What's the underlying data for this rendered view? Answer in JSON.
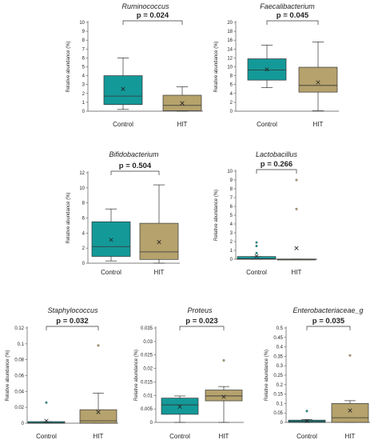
{
  "chart_data": [
    {
      "type": "box",
      "title": "Ruminococcus",
      "annotation": "p = 0.024",
      "ylabel": "Relative abundance (%)",
      "ylim": [
        0,
        10
      ],
      "yticks": [
        0,
        1,
        2,
        3,
        4,
        5,
        6,
        7,
        8,
        9,
        10
      ],
      "categories": [
        "Control",
        "HIT"
      ],
      "series": [
        {
          "box": {
            "min": 0.2,
            "q1": 0.75,
            "median": 1.7,
            "q3": 4.0,
            "max": 6.0,
            "mean": 2.5,
            "outliers": []
          }
        },
        {
          "box": {
            "min": 0.0,
            "q1": 0.05,
            "median": 0.65,
            "q3": 1.8,
            "max": 2.75,
            "mean": 0.9,
            "outliers": []
          }
        }
      ],
      "colors": [
        "#149999",
        "#b5a26c"
      ]
    },
    {
      "type": "box",
      "title": "Faecalibacterium",
      "annotation": "p = 0.045",
      "ylabel": "Relative abundance (%)",
      "ylim": [
        0,
        20
      ],
      "yticks": [
        0,
        2,
        4,
        6,
        8,
        10,
        12,
        14,
        16,
        18,
        20
      ],
      "categories": [
        "Control",
        "HIT"
      ],
      "series": [
        {
          "box": {
            "min": 5.3,
            "q1": 7.0,
            "median": 9.3,
            "q3": 11.8,
            "max": 14.9,
            "mean": 9.4,
            "outliers": []
          }
        },
        {
          "box": {
            "min": 0.1,
            "q1": 4.3,
            "median": 5.8,
            "q3": 9.9,
            "max": 15.6,
            "mean": 6.5,
            "outliers": []
          }
        }
      ],
      "colors": [
        "#149999",
        "#b5a26c"
      ]
    },
    {
      "type": "box",
      "title": "Bifidobacterium",
      "annotation": "p = 0.504",
      "ylabel": "Relative abundance (%)",
      "ylim": [
        0,
        12
      ],
      "yticks": [
        0,
        2,
        4,
        6,
        8,
        10,
        12
      ],
      "categories": [
        "Control",
        "HIT"
      ],
      "series": [
        {
          "box": {
            "min": 0.3,
            "q1": 0.9,
            "median": 2.2,
            "q3": 5.5,
            "max": 7.2,
            "mean": 3.1,
            "outliers": []
          }
        },
        {
          "box": {
            "min": 0.0,
            "q1": 0.5,
            "median": 1.5,
            "q3": 5.3,
            "max": 10.4,
            "mean": 2.8,
            "outliers": []
          }
        }
      ],
      "colors": [
        "#149999",
        "#b5a26c"
      ]
    },
    {
      "type": "box",
      "title": "Lactobacillus",
      "annotation": "p = 0.266",
      "ylabel": "Relative abundance (%)",
      "ylim": [
        0,
        10
      ],
      "yticks": [
        0,
        1,
        2,
        3,
        4,
        5,
        6,
        7,
        8,
        9,
        10
      ],
      "categories": [
        "Control",
        "HIT"
      ],
      "series": [
        {
          "box": {
            "min": 0.0,
            "q1": 0.0,
            "median": 0.05,
            "q3": 0.3,
            "max": 0.3,
            "mean": 0.35,
            "outliers": [
              0.7,
              1.5,
              1.9
            ]
          }
        },
        {
          "box": {
            "min": 0.0,
            "q1": 0.0,
            "median": 0.0,
            "q3": 0.02,
            "max": 0.02,
            "mean": 1.25,
            "outliers": [
              5.7,
              9.0
            ]
          }
        }
      ],
      "colors": [
        "#149999",
        "#b5a26c"
      ]
    },
    {
      "type": "box",
      "title": "Staphylococcus",
      "annotation": "p = 0.032",
      "ylabel": "Relative abundance (%)",
      "ylim": [
        0,
        0.12
      ],
      "yticks": [
        0,
        0.02,
        0.04,
        0.06,
        0.08,
        0.1,
        0.12
      ],
      "categories": [
        "Control",
        "HIT"
      ],
      "series": [
        {
          "box": {
            "min": 0.0,
            "q1": 0.0,
            "median": 0.0005,
            "q3": 0.002,
            "max": 0.002,
            "mean": 0.003,
            "outliers": [
              0.026
            ]
          }
        },
        {
          "box": {
            "min": 0.0,
            "q1": 0.0,
            "median": 0.003,
            "q3": 0.017,
            "max": 0.038,
            "mean": 0.014,
            "outliers": [
              0.098
            ]
          }
        }
      ],
      "colors": [
        "#149999",
        "#b5a26c"
      ]
    },
    {
      "type": "box",
      "title": "Proteus",
      "annotation": "p = 0.023",
      "ylabel": "Relative abundance (%)",
      "ylim": [
        0,
        0.035
      ],
      "yticks": [
        0,
        0.005,
        0.01,
        0.015,
        0.02,
        0.025,
        0.03,
        0.035
      ],
      "categories": [
        "Control",
        "HIT"
      ],
      "series": [
        {
          "box": {
            "min": 0.0,
            "q1": 0.003,
            "median": 0.0065,
            "q3": 0.009,
            "max": 0.0098,
            "mean": 0.0058,
            "outliers": []
          }
        },
        {
          "box": {
            "min": 0.0,
            "q1": 0.008,
            "median": 0.0098,
            "q3": 0.012,
            "max": 0.0133,
            "mean": 0.0095,
            "outliers": [
              0.023
            ]
          }
        }
      ],
      "colors": [
        "#149999",
        "#b5a26c"
      ]
    },
    {
      "type": "box",
      "title": "Enterobacteriaceae_g",
      "annotation": "p = 0.035",
      "ylabel": "Relative abundance (%)",
      "ylim": [
        0,
        0.5
      ],
      "yticks": [
        0,
        0.05,
        0.1,
        0.15,
        0.2,
        0.25,
        0.3,
        0.35,
        0.4,
        0.45,
        0.5
      ],
      "categories": [
        "Control",
        "HIT"
      ],
      "series": [
        {
          "box": {
            "min": 0.0,
            "q1": 0.0,
            "median": 0.005,
            "q3": 0.012,
            "max": 0.015,
            "mean": 0.007,
            "outliers": [
              0.06
            ]
          }
        },
        {
          "box": {
            "min": 0.0,
            "q1": 0.0,
            "median": 0.025,
            "q3": 0.1,
            "max": 0.115,
            "mean": 0.063,
            "outliers": [
              0.355
            ]
          }
        }
      ],
      "colors": [
        "#149999",
        "#b5a26c"
      ]
    }
  ]
}
